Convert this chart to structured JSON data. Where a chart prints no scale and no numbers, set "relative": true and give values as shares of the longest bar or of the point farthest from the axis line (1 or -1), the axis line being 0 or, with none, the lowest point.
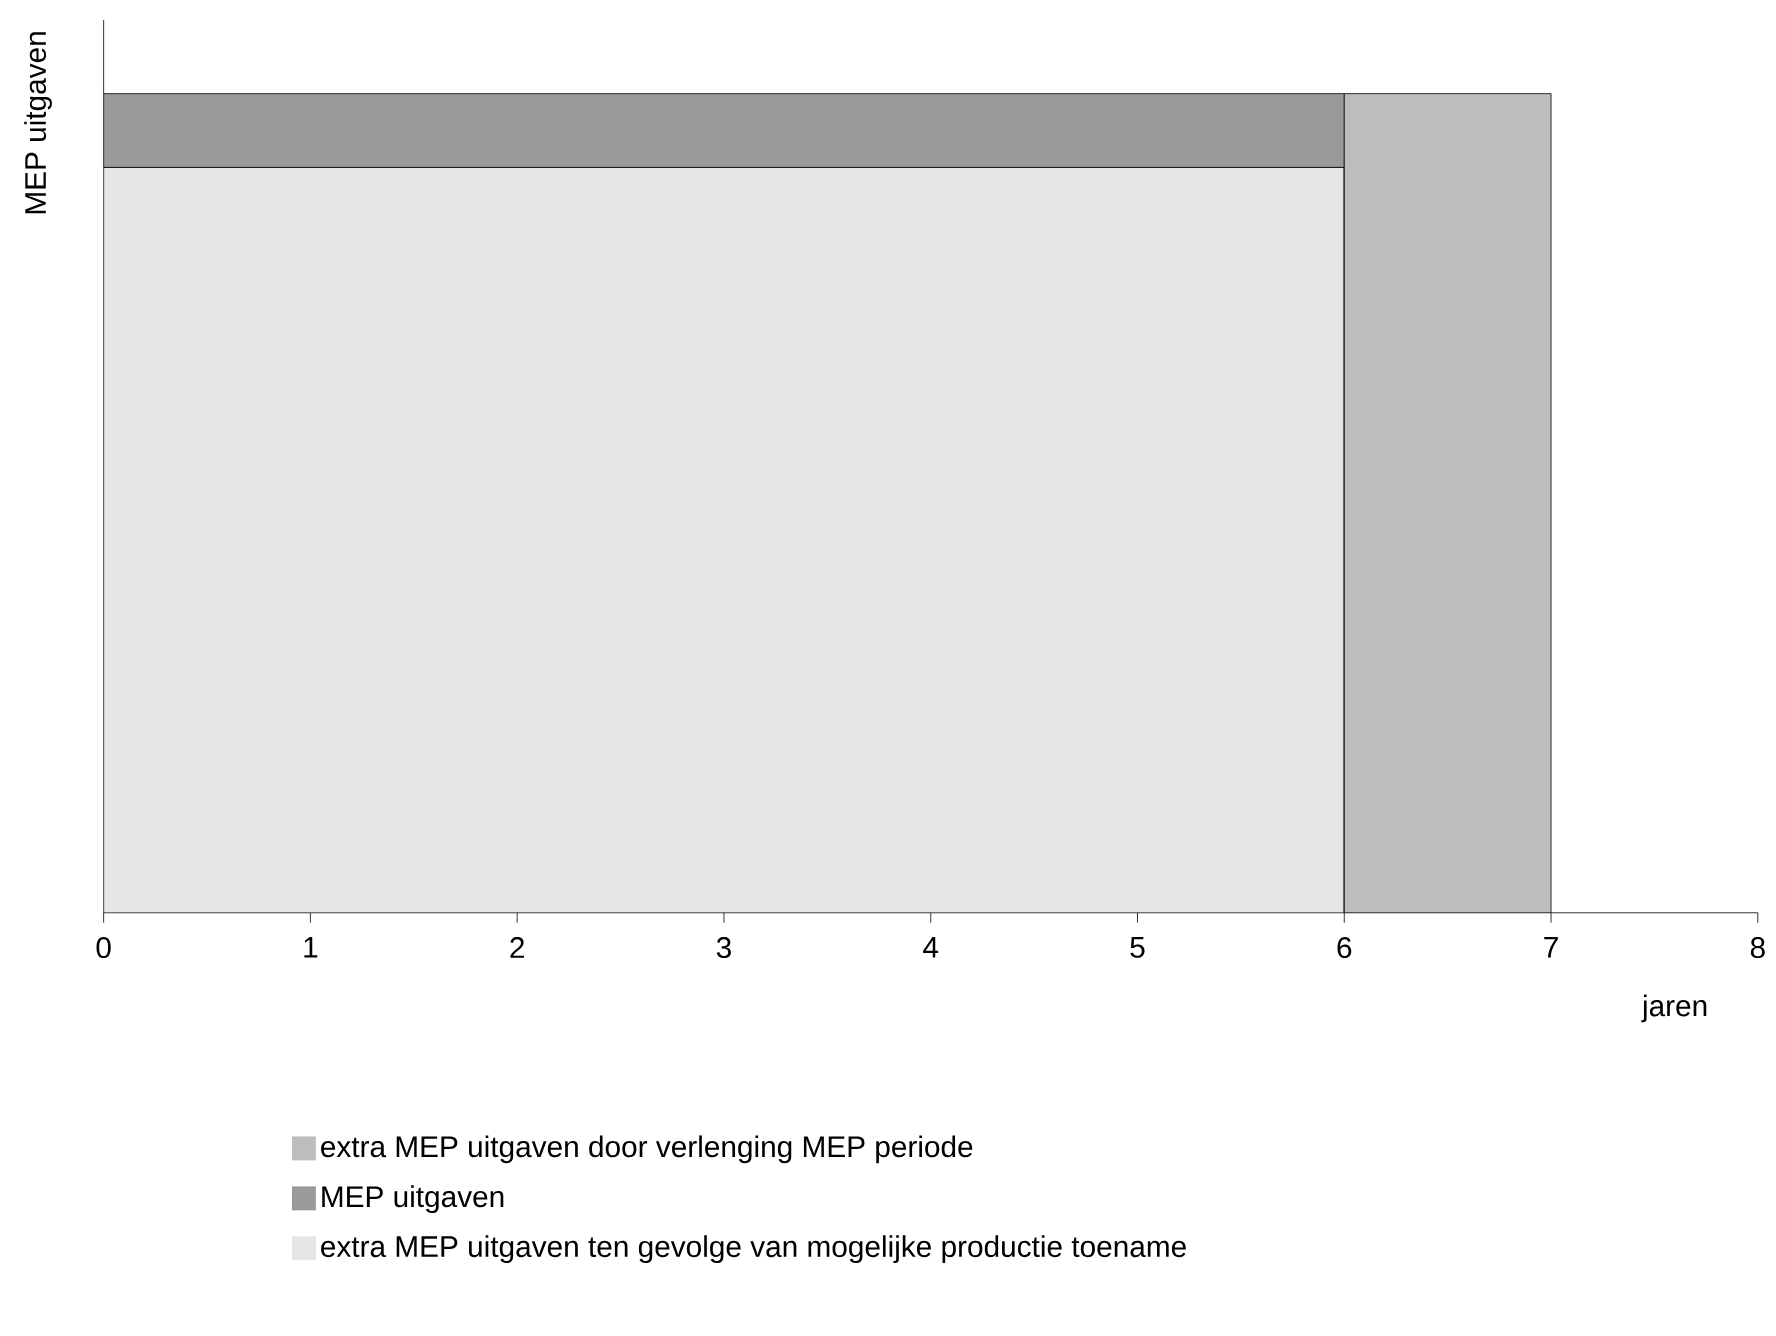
{
  "chart_data": {
    "type": "area",
    "stacked": true,
    "relative": true,
    "x": [
      0,
      6,
      6,
      7
    ],
    "xlim": [
      0,
      8
    ],
    "xticks": [
      0,
      1,
      2,
      3,
      4,
      5,
      6,
      7,
      8
    ],
    "xlabel": "jaren",
    "ylabel": "MEP uitgaven",
    "tick_labels": "x",
    "legend": "bottom",
    "series": [
      {
        "name": "extra MEP uitgaven ten gevolge van mogelijke productie toename",
        "color": "#e6e6e6",
        "values": [
          0.91,
          0.91,
          0,
          0
        ]
      },
      {
        "name": "MEP uitgaven",
        "color": "#9a9a9a",
        "values": [
          0.09,
          0.09,
          0,
          0
        ]
      },
      {
        "name": "extra MEP uitgaven door verlenging MEP periode",
        "color": "#bdbdbd",
        "values": [
          null,
          null,
          1,
          1
        ]
      }
    ]
  }
}
